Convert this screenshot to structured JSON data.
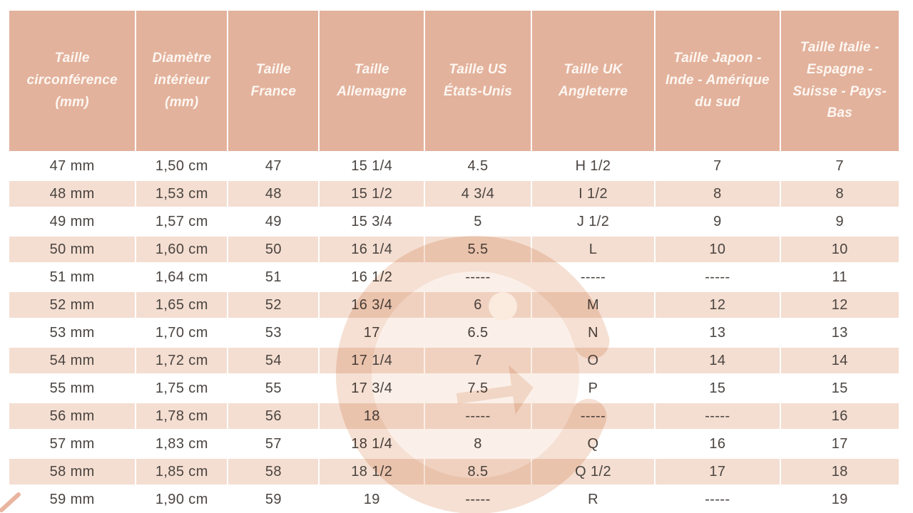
{
  "chart_data": {
    "type": "table",
    "columns": [
      "Taille circonférence (mm)",
      "Diamètre intérieur (mm)",
      "Taille France",
      "Taille Allemagne",
      "Taille US États-Unis",
      "Taille UK Angleterre",
      "Taille Japon - Inde - Amérique du sud",
      "Taille Italie - Espagne - Suisse - Pays-Bas"
    ],
    "rows": [
      [
        "47 mm",
        "1,50 cm",
        "47",
        "15 1/4",
        "4.5",
        "H 1/2",
        "7",
        "7"
      ],
      [
        "48 mm",
        "1,53 cm",
        "48",
        "15 1/2",
        "4 3/4",
        "I 1/2",
        "8",
        "8"
      ],
      [
        "49 mm",
        "1,57 cm",
        "49",
        "15 3/4",
        "5",
        "J 1/2",
        "9",
        "9"
      ],
      [
        "50 mm",
        "1,60 cm",
        "50",
        "16 1/4",
        "5.5",
        "L",
        "10",
        "10"
      ],
      [
        "51 mm",
        "1,64 cm",
        "51",
        "16 1/2",
        "-----",
        "-----",
        "-----",
        "11"
      ],
      [
        "52 mm",
        "1,65 cm",
        "52",
        "16 3/4",
        "6",
        "M",
        "12",
        "12"
      ],
      [
        "53 mm",
        "1,70 cm",
        "53",
        "17",
        "6.5",
        "N",
        "13",
        "13"
      ],
      [
        "54 mm",
        "1,72 cm",
        "54",
        "17 1/4",
        "7",
        "O",
        "14",
        "14"
      ],
      [
        "55 mm",
        "1,75 cm",
        "55",
        "17 3/4",
        "7.5",
        "P",
        "15",
        "15"
      ],
      [
        "56 mm",
        "1,78 cm",
        "56",
        "18",
        "-----",
        "-----",
        "-----",
        "16"
      ],
      [
        "57 mm",
        "1,83 cm",
        "57",
        "18 1/4",
        "8",
        "Q",
        "16",
        "17"
      ],
      [
        "58 mm",
        "1,85 cm",
        "58",
        "18 1/2",
        "8.5",
        "Q 1/2",
        "17",
        "18"
      ],
      [
        "59 mm",
        "1,90 cm",
        "59",
        "19",
        "-----",
        "R",
        "-----",
        "19"
      ]
    ],
    "layout": {
      "header_position": "top",
      "alternating_rows": true
    }
  },
  "colors": {
    "header_bg": "#e3b29c",
    "header_text": "#fdf7f2",
    "row_bg": "#ffffff",
    "row_alt_bg": "#f4ded1",
    "cell_text": "#4a4440",
    "watermark": "#f3dccd"
  },
  "watermark": {
    "icon": "g-logo",
    "description": "large faded circular G monogram behind table"
  }
}
